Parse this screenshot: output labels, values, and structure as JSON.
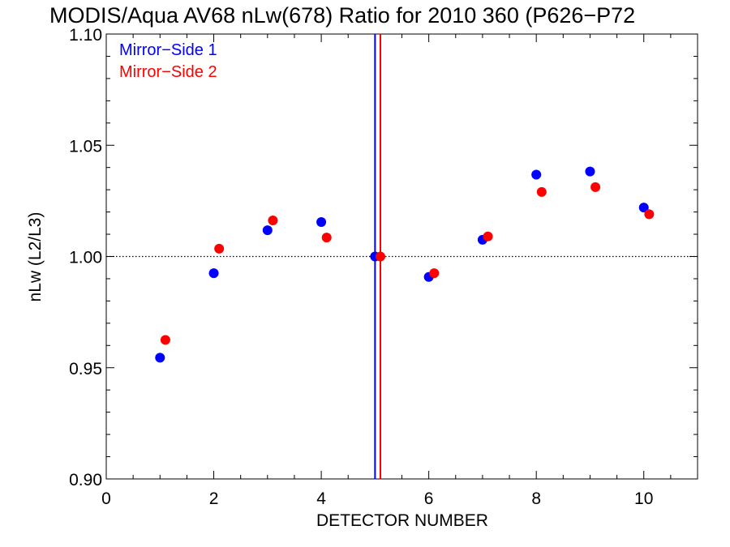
{
  "chart_data": {
    "type": "scatter",
    "title": "MODIS/Aqua AV68 nLw(678) Ratio for 2010 360 (P626−P72",
    "xlabel": "DETECTOR NUMBER",
    "ylabel": "nLw (L2/L3)",
    "xlim": [
      0,
      11
    ],
    "ylim": [
      0.9,
      1.1
    ],
    "x_ticks": [
      0,
      2,
      4,
      6,
      8,
      10
    ],
    "y_ticks": [
      0.9,
      0.95,
      1.0,
      1.05,
      1.1
    ],
    "x_tick_labels": [
      "0",
      "2",
      "4",
      "6",
      "8",
      "10"
    ],
    "y_tick_labels": [
      "0.90",
      "0.95",
      "1.00",
      "1.05",
      "1.10"
    ],
    "reference_line_y": 1.0,
    "vertical_lines": [
      {
        "x": 5.0,
        "series": "Mirror−Side 1"
      },
      {
        "x": 5.1,
        "series": "Mirror−Side 2"
      }
    ],
    "legend_position": "top-left",
    "grid": false,
    "series": [
      {
        "name": "Mirror−Side 1",
        "color": "#0000ff",
        "points": [
          {
            "x": 1,
            "y": 0.9545
          },
          {
            "x": 2,
            "y": 0.9925
          },
          {
            "x": 3,
            "y": 1.0118
          },
          {
            "x": 4,
            "y": 1.0155
          },
          {
            "x": 5,
            "y": 1.0
          },
          {
            "x": 6,
            "y": 0.9908
          },
          {
            "x": 7,
            "y": 1.0075
          },
          {
            "x": 8,
            "y": 1.0368
          },
          {
            "x": 9,
            "y": 1.0382
          },
          {
            "x": 10,
            "y": 1.022
          }
        ]
      },
      {
        "name": "Mirror−Side 2",
        "color": "#ff0000",
        "points": [
          {
            "x": 1.1,
            "y": 0.9625
          },
          {
            "x": 2.1,
            "y": 1.0035
          },
          {
            "x": 3.1,
            "y": 1.0162
          },
          {
            "x": 4.1,
            "y": 1.0085
          },
          {
            "x": 5.1,
            "y": 1.0
          },
          {
            "x": 6.1,
            "y": 0.9925
          },
          {
            "x": 7.1,
            "y": 1.009
          },
          {
            "x": 8.1,
            "y": 1.029
          },
          {
            "x": 9.1,
            "y": 1.0312
          },
          {
            "x": 10.1,
            "y": 1.019
          }
        ]
      }
    ]
  }
}
